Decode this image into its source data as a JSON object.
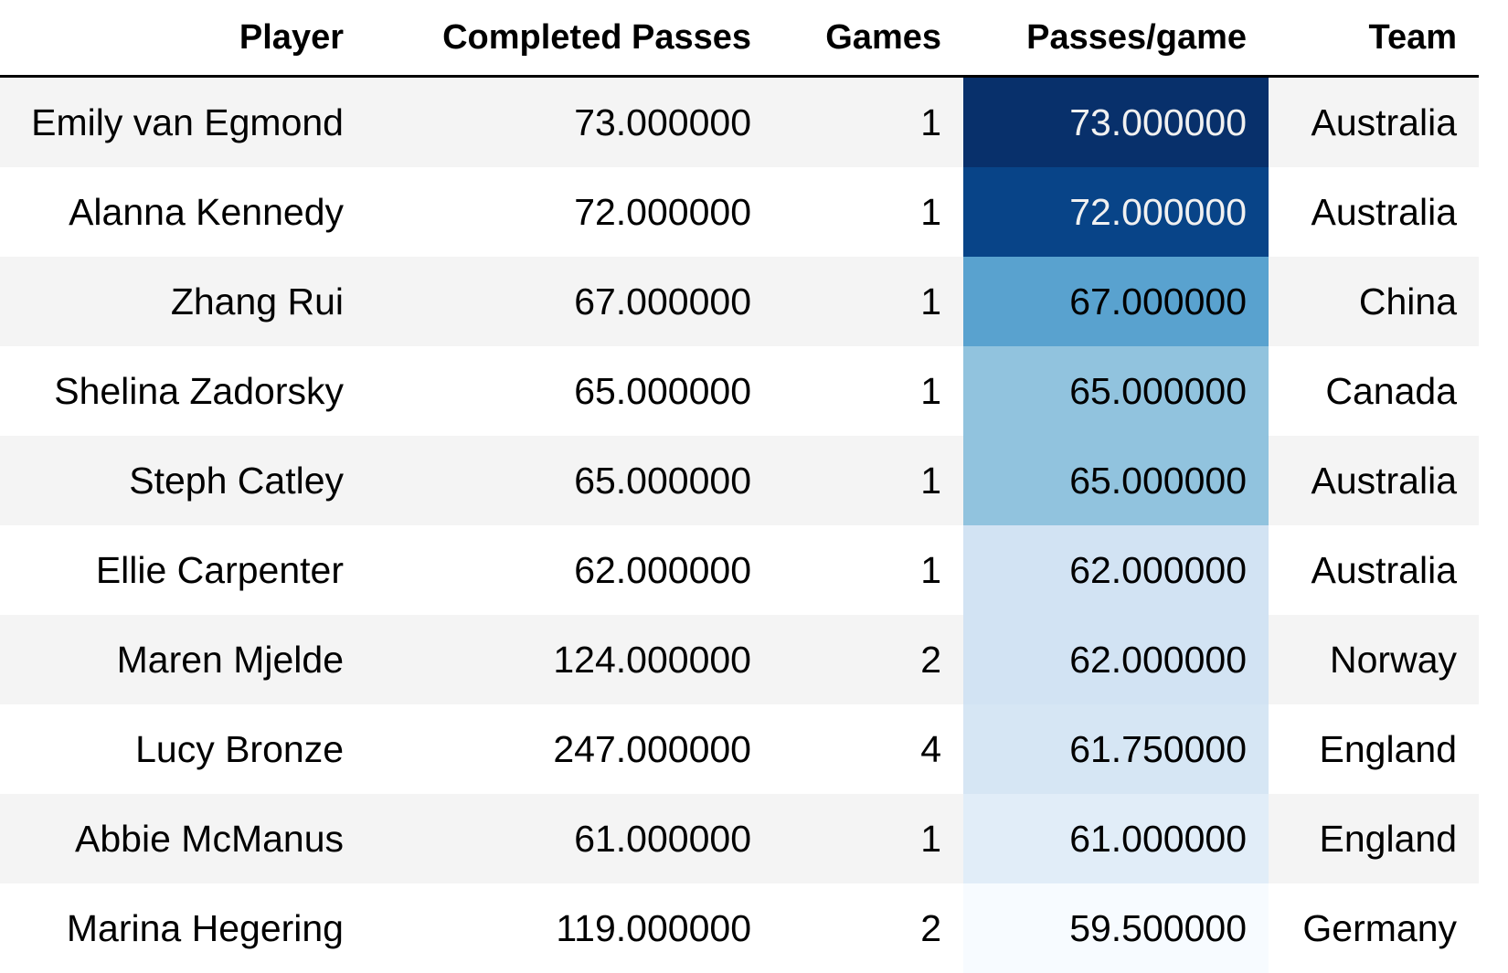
{
  "chart_data": {
    "type": "table",
    "columns": [
      "Player",
      "Completed Passes",
      "Games",
      "Passes/game",
      "Team"
    ],
    "rows": [
      {
        "player": "Emily van Egmond",
        "completed": "73.000000",
        "games": "1",
        "ppg": "73.000000",
        "ppg_value": 73.0,
        "team": "Australia"
      },
      {
        "player": "Alanna Kennedy",
        "completed": "72.000000",
        "games": "1",
        "ppg": "72.000000",
        "ppg_value": 72.0,
        "team": "Australia"
      },
      {
        "player": "Zhang Rui",
        "completed": "67.000000",
        "games": "1",
        "ppg": "67.000000",
        "ppg_value": 67.0,
        "team": "China"
      },
      {
        "player": "Shelina Zadorsky",
        "completed": "65.000000",
        "games": "1",
        "ppg": "65.000000",
        "ppg_value": 65.0,
        "team": "Canada"
      },
      {
        "player": "Steph Catley",
        "completed": "65.000000",
        "games": "1",
        "ppg": "65.000000",
        "ppg_value": 65.0,
        "team": "Australia"
      },
      {
        "player": "Ellie Carpenter",
        "completed": "62.000000",
        "games": "1",
        "ppg": "62.000000",
        "ppg_value": 62.0,
        "team": "Australia"
      },
      {
        "player": "Maren Mjelde",
        "completed": "124.000000",
        "games": "2",
        "ppg": "62.000000",
        "ppg_value": 62.0,
        "team": "Norway"
      },
      {
        "player": "Lucy Bronze",
        "completed": "247.000000",
        "games": "4",
        "ppg": "61.750000",
        "ppg_value": 61.75,
        "team": "England"
      },
      {
        "player": "Abbie McManus",
        "completed": "61.000000",
        "games": "1",
        "ppg": "61.000000",
        "ppg_value": 61.0,
        "team": "England"
      },
      {
        "player": "Marina Hegering",
        "completed": "119.000000",
        "games": "2",
        "ppg": "59.500000",
        "ppg_value": 59.5,
        "team": "Germany"
      }
    ],
    "gradient_column": "Passes/game",
    "gradient_colors": [
      "#f7fbff",
      "#deebf7",
      "#c6dbef",
      "#9ecae1",
      "#6baed6",
      "#4292c6",
      "#2171b5",
      "#08519c",
      "#08306b"
    ],
    "text_color_dark": "#000000",
    "text_color_light": "#f1f1f1",
    "stripe_colors": [
      "#f4f4f4",
      "#ffffff"
    ]
  }
}
